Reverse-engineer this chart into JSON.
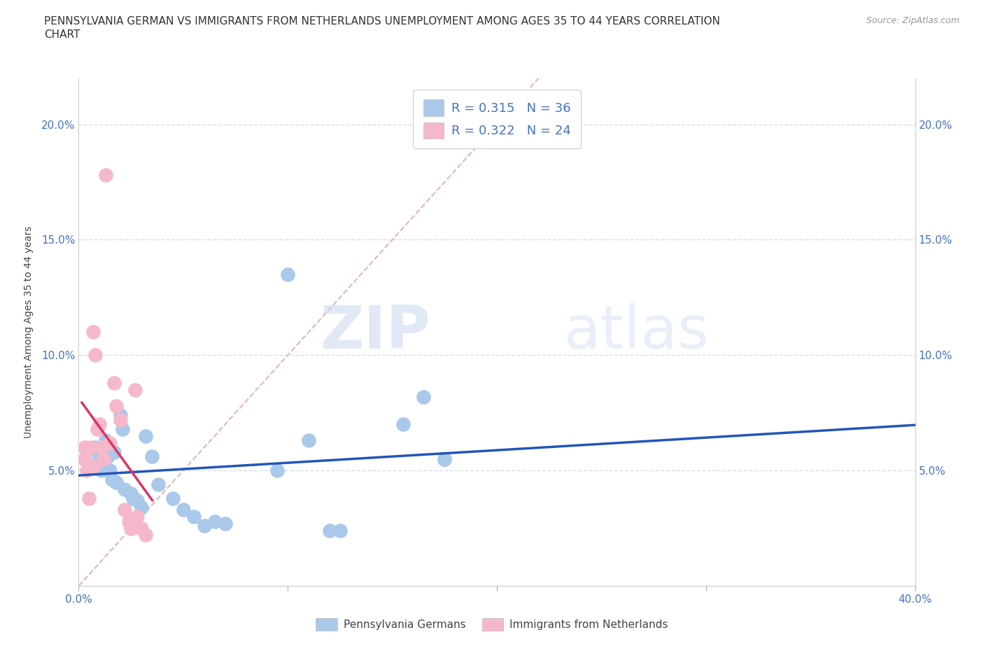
{
  "title_line1": "PENNSYLVANIA GERMAN VS IMMIGRANTS FROM NETHERLANDS UNEMPLOYMENT AMONG AGES 35 TO 44 YEARS CORRELATION",
  "title_line2": "CHART",
  "source": "Source: ZipAtlas.com",
  "ylabel": "Unemployment Among Ages 35 to 44 years",
  "xlim": [
    0.0,
    0.4
  ],
  "ylim": [
    0.0,
    0.22
  ],
  "xticks": [
    0.0,
    0.1,
    0.2,
    0.3,
    0.4
  ],
  "xticklabels": [
    "0.0%",
    "",
    "",
    "",
    "40.0%"
  ],
  "yticks": [
    0.0,
    0.05,
    0.1,
    0.15,
    0.2
  ],
  "yticklabels_left": [
    "",
    "5.0%",
    "10.0%",
    "15.0%",
    "20.0%"
  ],
  "yticklabels_right": [
    "",
    "5.0%",
    "10.0%",
    "15.0%",
    "20.0%"
  ],
  "blue_color": "#aac8ea",
  "pink_color": "#f5b8cb",
  "blue_line_color": "#2255bb",
  "pink_line_color": "#dd3366",
  "ref_line_color": "#ddaaaa",
  "watermark_zip": "ZIP",
  "watermark_atlas": "atlas",
  "legend_label_blue": "Pennsylvania Germans",
  "legend_label_pink": "Immigrants from Netherlands",
  "background_color": "#ffffff",
  "grid_color": "#d5dde8",
  "tick_color": "#4472c4",
  "title_fontsize": 11,
  "axis_label_fontsize": 10,
  "tick_fontsize": 11,
  "blue_x": [
    0.008,
    0.009,
    0.01,
    0.01,
    0.011,
    0.013,
    0.014,
    0.015,
    0.016,
    0.017,
    0.018,
    0.02,
    0.021,
    0.022,
    0.025,
    0.026,
    0.028,
    0.03,
    0.032,
    0.035,
    0.038,
    0.045,
    0.05,
    0.055,
    0.06,
    0.065,
    0.07,
    0.095,
    0.1,
    0.11,
    0.12,
    0.125,
    0.155,
    0.165,
    0.175,
    0.175
  ],
  "blue_y": [
    0.06,
    0.058,
    0.056,
    0.052,
    0.05,
    0.063,
    0.056,
    0.05,
    0.046,
    0.058,
    0.045,
    0.074,
    0.068,
    0.042,
    0.04,
    0.038,
    0.037,
    0.034,
    0.065,
    0.056,
    0.044,
    0.038,
    0.033,
    0.03,
    0.026,
    0.028,
    0.027,
    0.05,
    0.135,
    0.063,
    0.024,
    0.024,
    0.07,
    0.082,
    0.055,
    0.055
  ],
  "pink_x": [
    0.003,
    0.003,
    0.004,
    0.005,
    0.006,
    0.007,
    0.007,
    0.008,
    0.009,
    0.01,
    0.011,
    0.012,
    0.013,
    0.015,
    0.017,
    0.018,
    0.02,
    0.022,
    0.024,
    0.025,
    0.027,
    0.028,
    0.03,
    0.032
  ],
  "pink_y": [
    0.06,
    0.055,
    0.05,
    0.038,
    0.06,
    0.052,
    0.11,
    0.1,
    0.068,
    0.07,
    0.06,
    0.055,
    0.178,
    0.062,
    0.088,
    0.078,
    0.072,
    0.033,
    0.028,
    0.025,
    0.085,
    0.03,
    0.025,
    0.022
  ]
}
